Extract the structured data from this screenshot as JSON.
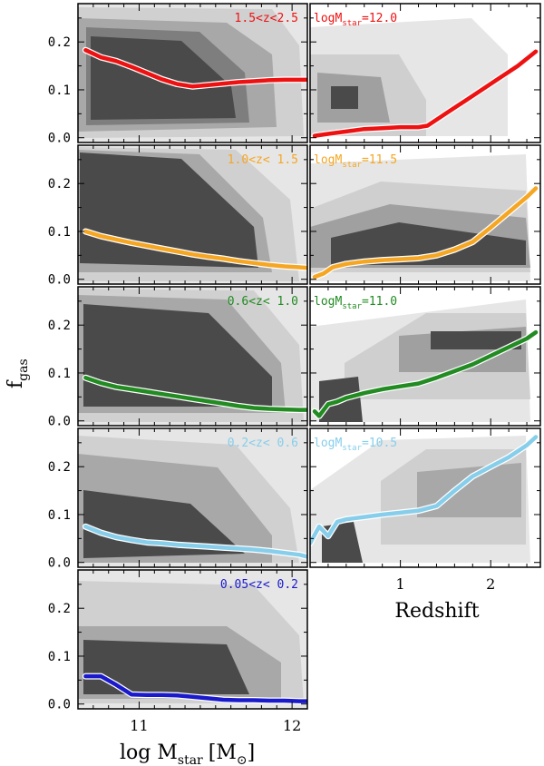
{
  "figure": {
    "ylabel_main": "f",
    "ylabel_sub": "gas",
    "xlabel_left_main": "log M",
    "xlabel_left_sub": "star",
    "xlabel_left_unit": "[M",
    "xlabel_left_unit_close": "]",
    "xlabel_right": "Redshift"
  },
  "chart_data": [
    {
      "type": "line",
      "panel": "left-1",
      "annotation": "1.5<z<2.5",
      "annotation_color": "#ee1111",
      "xlim": [
        10.6,
        12.1
      ],
      "ylim": [
        -0.01,
        0.28
      ],
      "yticks": [
        "0.0",
        "0.1",
        "0.2"
      ],
      "show_xticklabels": false,
      "series": [
        {
          "color": "#ee1111",
          "x": [
            10.65,
            10.75,
            10.85,
            10.95,
            11.05,
            11.15,
            11.25,
            11.35,
            11.45,
            11.55,
            11.65,
            11.75,
            11.85,
            11.95,
            12.05,
            12.1
          ],
          "y": [
            0.183,
            0.168,
            0.16,
            0.148,
            0.135,
            0.122,
            0.112,
            0.107,
            0.11,
            0.113,
            0.116,
            0.118,
            0.12,
            0.121,
            0.121,
            0.121
          ]
        }
      ]
    },
    {
      "type": "line",
      "panel": "right-1",
      "annotation": "logM",
      "annotation_sub": "star",
      "annotation_tail": "=12.0",
      "annotation_color": "#ee1111",
      "xlim": [
        0.0,
        2.55
      ],
      "ylim": [
        -0.01,
        0.28
      ],
      "yticks": [],
      "show_xticklabels": false,
      "series": [
        {
          "color": "#ee1111",
          "x": [
            0.05,
            0.2,
            0.4,
            0.6,
            0.8,
            1.0,
            1.2,
            1.3,
            1.5,
            1.7,
            1.9,
            2.1,
            2.3,
            2.5
          ],
          "y": [
            0.004,
            0.008,
            0.013,
            0.018,
            0.02,
            0.022,
            0.022,
            0.025,
            0.05,
            0.075,
            0.1,
            0.125,
            0.15,
            0.18
          ]
        }
      ]
    },
    {
      "type": "line",
      "panel": "left-2",
      "annotation": "1.0<z< 1.5",
      "annotation_color": "#f5a623",
      "xlim": [
        10.6,
        12.1
      ],
      "ylim": [
        -0.01,
        0.28
      ],
      "yticks": [
        "0.0",
        "0.1",
        "0.2"
      ],
      "show_xticklabels": false,
      "series": [
        {
          "color": "#f5a623",
          "x": [
            10.65,
            10.75,
            10.85,
            10.95,
            11.05,
            11.15,
            11.25,
            11.35,
            11.45,
            11.55,
            11.65,
            11.75,
            11.85,
            11.95,
            12.05,
            12.1
          ],
          "y": [
            0.1,
            0.09,
            0.083,
            0.076,
            0.07,
            0.064,
            0.058,
            0.052,
            0.047,
            0.043,
            0.038,
            0.034,
            0.03,
            0.027,
            0.025,
            0.024
          ]
        }
      ]
    },
    {
      "type": "line",
      "panel": "right-2",
      "annotation": "logM",
      "annotation_sub": "star",
      "annotation_tail": "=11.5",
      "annotation_color": "#f5a623",
      "xlim": [
        0.0,
        2.55
      ],
      "ylim": [
        -0.01,
        0.28
      ],
      "yticks": [],
      "show_xticklabels": false,
      "series": [
        {
          "color": "#f5a623",
          "x": [
            0.05,
            0.15,
            0.25,
            0.4,
            0.6,
            0.8,
            1.0,
            1.2,
            1.4,
            1.6,
            1.8,
            2.0,
            2.2,
            2.4,
            2.5
          ],
          "y": [
            0.005,
            0.012,
            0.025,
            0.032,
            0.037,
            0.04,
            0.042,
            0.044,
            0.05,
            0.062,
            0.078,
            0.108,
            0.14,
            0.172,
            0.19
          ]
        }
      ]
    },
    {
      "type": "line",
      "panel": "left-3",
      "annotation": "0.6<z< 1.0",
      "annotation_color": "#228b22",
      "xlim": [
        10.6,
        12.1
      ],
      "ylim": [
        -0.01,
        0.28
      ],
      "yticks": [
        "0.0",
        "0.1",
        "0.2"
      ],
      "show_xticklabels": false,
      "series": [
        {
          "color": "#228b22",
          "x": [
            10.65,
            10.75,
            10.85,
            10.95,
            11.05,
            11.15,
            11.25,
            11.35,
            11.45,
            11.55,
            11.65,
            11.75,
            11.85,
            11.95,
            12.05,
            12.1
          ],
          "y": [
            0.09,
            0.079,
            0.071,
            0.066,
            0.061,
            0.056,
            0.051,
            0.046,
            0.041,
            0.036,
            0.031,
            0.027,
            0.025,
            0.024,
            0.023,
            0.023
          ]
        }
      ]
    },
    {
      "type": "line",
      "panel": "right-3",
      "annotation": "logM",
      "annotation_sub": "star",
      "annotation_tail": "=11.0",
      "annotation_color": "#228b22",
      "xlim": [
        0.0,
        2.55
      ],
      "ylim": [
        -0.01,
        0.28
      ],
      "yticks": [],
      "show_xticklabels": false,
      "series": [
        {
          "color": "#228b22",
          "x": [
            0.05,
            0.1,
            0.2,
            0.3,
            0.4,
            0.6,
            0.8,
            1.0,
            1.2,
            1.4,
            1.6,
            1.8,
            2.0,
            2.2,
            2.4,
            2.5
          ],
          "y": [
            0.02,
            0.01,
            0.035,
            0.04,
            0.048,
            0.058,
            0.066,
            0.072,
            0.078,
            0.09,
            0.104,
            0.118,
            0.136,
            0.154,
            0.172,
            0.185
          ]
        }
      ]
    },
    {
      "type": "line",
      "panel": "left-4",
      "annotation": "0.2<z< 0.6",
      "annotation_color": "#87ceeb",
      "xlim": [
        10.6,
        12.1
      ],
      "ylim": [
        -0.01,
        0.28
      ],
      "yticks": [
        "0.0",
        "0.1",
        "0.2"
      ],
      "show_xticklabels": false,
      "series": [
        {
          "color": "#87ceeb",
          "x": [
            10.65,
            10.75,
            10.85,
            10.95,
            11.05,
            11.15,
            11.25,
            11.35,
            11.45,
            11.55,
            11.65,
            11.75,
            11.85,
            11.95,
            12.05,
            12.1
          ],
          "y": [
            0.075,
            0.062,
            0.053,
            0.047,
            0.042,
            0.04,
            0.037,
            0.035,
            0.033,
            0.031,
            0.029,
            0.027,
            0.024,
            0.02,
            0.016,
            0.012
          ]
        }
      ]
    },
    {
      "type": "line",
      "panel": "right-4",
      "annotation": "logM",
      "annotation_sub": "star",
      "annotation_tail": "=10.5",
      "annotation_color": "#87ceeb",
      "xlim": [
        0.0,
        2.55
      ],
      "ylim": [
        -0.01,
        0.28
      ],
      "yticks": [],
      "xticks": [
        "1",
        "2"
      ],
      "show_xticklabels": true,
      "series": [
        {
          "color": "#87ceeb",
          "x": [
            0.0,
            0.1,
            0.2,
            0.3,
            0.4,
            0.6,
            0.8,
            1.0,
            1.2,
            1.4,
            1.6,
            1.8,
            2.0,
            2.2,
            2.4,
            2.5
          ],
          "y": [
            0.04,
            0.075,
            0.055,
            0.085,
            0.09,
            0.095,
            0.1,
            0.104,
            0.108,
            0.118,
            0.15,
            0.18,
            0.2,
            0.22,
            0.245,
            0.262
          ]
        }
      ]
    },
    {
      "type": "line",
      "panel": "left-5",
      "annotation": "0.05<z< 0.2",
      "annotation_color": "#1a1acc",
      "xlim": [
        10.6,
        12.1
      ],
      "ylim": [
        -0.01,
        0.28
      ],
      "yticks": [
        "0.0",
        "0.1",
        "0.2"
      ],
      "xticks": [
        "11",
        "12"
      ],
      "show_xticklabels": true,
      "series": [
        {
          "color": "#1a1acc",
          "x": [
            10.65,
            10.75,
            10.85,
            10.95,
            11.05,
            11.15,
            11.25,
            11.35,
            11.45,
            11.55,
            11.65,
            11.75,
            11.85,
            11.95,
            12.05,
            12.1
          ],
          "y": [
            0.058,
            0.058,
            0.04,
            0.02,
            0.019,
            0.019,
            0.018,
            0.015,
            0.012,
            0.009,
            0.008,
            0.008,
            0.007,
            0.007,
            0.006,
            0.006
          ]
        }
      ]
    }
  ]
}
